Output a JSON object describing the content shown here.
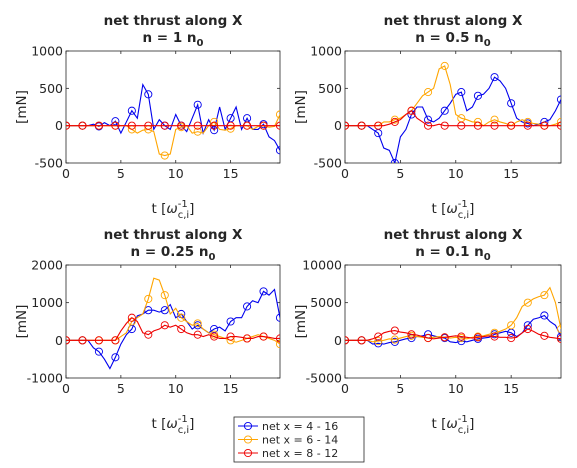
{
  "charts": [
    {
      "title1": "net thrust along X",
      "title2_main": "n = 1 n",
      "title2_sub": "0",
      "ylabel": "[mN]"
    },
    {
      "title1": "net thrust along X",
      "title2_main": "n = 0.5 n",
      "title2_sub": "0",
      "ylabel": "[mN]"
    },
    {
      "title1": "net thrust along X",
      "title2_main": "n = 0.25 n",
      "title2_sub": "0",
      "ylabel": "[mN]"
    },
    {
      "title1": "net thrust along X",
      "title2_main": "n = 0.1 n",
      "title2_sub": "0",
      "ylabel": "[mN]"
    }
  ],
  "xlabel": {
    "main": "t [",
    "omega": "ω",
    "sup": "-1",
    "sub": "c,i",
    "close": "]"
  },
  "legend": {
    "placement": "bottom-center",
    "entries": [
      "net x = 4 - 16",
      "net x = 6 - 14",
      "net x = 8 - 12"
    ]
  },
  "colors": {
    "blue": "#0000ee",
    "orange": "#ffa500",
    "red": "#ee0000"
  },
  "chart_data": [
    {
      "type": "line",
      "xlim": [
        0,
        19.5
      ],
      "ylim": [
        -500,
        1000
      ],
      "xticks": [
        0,
        5,
        10,
        15
      ],
      "yticks": [
        -500,
        0,
        500,
        1000
      ],
      "x": [
        0,
        0.5,
        1,
        1.5,
        2,
        2.5,
        3,
        3.5,
        4,
        4.5,
        5,
        5.5,
        6,
        6.5,
        7,
        7.5,
        8,
        8.5,
        9,
        9.5,
        10,
        10.5,
        11,
        11.5,
        12,
        12.5,
        13,
        13.5,
        14,
        14.5,
        15,
        15.5,
        16,
        16.5,
        17,
        17.5,
        18,
        18.5,
        19,
        19.5
      ],
      "series": [
        {
          "name": "net x = 4 - 16",
          "color": "blue",
          "values": [
            0,
            0,
            0,
            0,
            0,
            20,
            -10,
            40,
            0,
            60,
            -100,
            50,
            200,
            100,
            550,
            420,
            -50,
            80,
            0,
            -50,
            150,
            0,
            -80,
            100,
            280,
            -100,
            80,
            -60,
            250,
            -50,
            100,
            250,
            -50,
            100,
            -50,
            -50,
            20,
            -150,
            -200,
            -330
          ]
        },
        {
          "name": "net x = 6 - 14",
          "color": "orange",
          "values": [
            0,
            0,
            0,
            0,
            0,
            0,
            0,
            0,
            0,
            0,
            0,
            0,
            -50,
            -100,
            -60,
            -50,
            -80,
            -380,
            -400,
            -380,
            -50,
            -20,
            0,
            -100,
            -80,
            -100,
            0,
            50,
            -50,
            -60,
            -40,
            0,
            0,
            0,
            -50,
            -10,
            0,
            -20,
            -10,
            150
          ]
        },
        {
          "name": "net x = 8 - 12",
          "color": "red",
          "values": [
            0,
            0,
            0,
            0,
            0,
            0,
            0,
            0,
            0,
            0,
            0,
            0,
            0,
            0,
            0,
            0,
            0,
            0,
            0,
            0,
            0,
            0,
            0,
            0,
            0,
            0,
            0,
            0,
            0,
            0,
            0,
            0,
            0,
            0,
            0,
            0,
            0,
            0,
            0,
            0
          ]
        }
      ]
    },
    {
      "type": "line",
      "xlim": [
        0,
        19.5
      ],
      "ylim": [
        -500,
        1000
      ],
      "xticks": [
        0,
        5,
        10,
        15
      ],
      "yticks": [
        -500,
        0,
        500,
        1000
      ],
      "x": [
        0,
        0.5,
        1,
        1.5,
        2,
        2.5,
        3,
        3.5,
        4,
        4.5,
        5,
        5.5,
        6,
        6.5,
        7,
        7.5,
        8,
        8.5,
        9,
        9.5,
        10,
        10.5,
        11,
        11.5,
        12,
        12.5,
        13,
        13.5,
        14,
        14.5,
        15,
        15.5,
        16,
        16.5,
        17,
        17.5,
        18,
        18.5,
        19,
        19.5
      ],
      "series": [
        {
          "name": "net x = 4 - 16",
          "color": "blue",
          "values": [
            0,
            0,
            0,
            0,
            0,
            -50,
            -100,
            -300,
            -330,
            -500,
            -150,
            -50,
            150,
            250,
            250,
            80,
            50,
            100,
            200,
            300,
            420,
            450,
            200,
            250,
            400,
            420,
            500,
            650,
            600,
            500,
            300,
            100,
            50,
            30,
            0,
            20,
            50,
            80,
            200,
            350
          ]
        },
        {
          "name": "net x = 6 - 14",
          "color": "orange",
          "values": [
            0,
            0,
            0,
            0,
            0,
            0,
            0,
            50,
            50,
            80,
            100,
            150,
            200,
            300,
            400,
            450,
            500,
            760,
            800,
            550,
            150,
            100,
            80,
            50,
            50,
            0,
            50,
            80,
            50,
            30,
            0,
            50,
            80,
            50,
            30,
            20,
            0,
            0,
            20,
            50
          ]
        },
        {
          "name": "net x = 8 - 12",
          "color": "red",
          "values": [
            0,
            0,
            0,
            0,
            0,
            0,
            0,
            0,
            20,
            50,
            80,
            150,
            200,
            100,
            50,
            0,
            0,
            20,
            0,
            0,
            0,
            0,
            0,
            0,
            0,
            0,
            0,
            0,
            0,
            0,
            0,
            0,
            0,
            0,
            0,
            0,
            0,
            0,
            0,
            0
          ]
        }
      ]
    },
    {
      "type": "line",
      "xlim": [
        0,
        19.5
      ],
      "ylim": [
        -1000,
        2000
      ],
      "xticks": [
        0,
        5,
        10,
        15
      ],
      "yticks": [
        -1000,
        0,
        1000,
        2000
      ],
      "x": [
        0,
        0.5,
        1,
        1.5,
        2,
        2.5,
        3,
        3.5,
        4,
        4.5,
        5,
        5.5,
        6,
        6.5,
        7,
        7.5,
        8,
        8.5,
        9,
        9.5,
        10,
        10.5,
        11,
        11.5,
        12,
        12.5,
        13,
        13.5,
        14,
        14.5,
        15,
        15.5,
        16,
        16.5,
        17,
        17.5,
        18,
        18.5,
        19,
        19.5
      ],
      "series": [
        {
          "name": "net x = 4 - 16",
          "color": "blue",
          "values": [
            0,
            0,
            0,
            0,
            0,
            -200,
            -300,
            -500,
            -750,
            -450,
            -100,
            150,
            300,
            650,
            700,
            800,
            800,
            750,
            800,
            950,
            600,
            700,
            500,
            300,
            400,
            300,
            200,
            300,
            350,
            250,
            500,
            600,
            600,
            900,
            1050,
            1000,
            1300,
            1200,
            1350,
            600
          ]
        },
        {
          "name": "net x = 6 - 14",
          "color": "orange",
          "values": [
            0,
            0,
            0,
            0,
            0,
            0,
            0,
            0,
            0,
            0,
            100,
            200,
            500,
            600,
            700,
            1100,
            1650,
            1600,
            1200,
            700,
            850,
            600,
            500,
            400,
            450,
            300,
            200,
            150,
            100,
            50,
            0,
            -50,
            0,
            50,
            100,
            150,
            100,
            50,
            0,
            -100
          ]
        },
        {
          "name": "net x = 8 - 12",
          "color": "red",
          "values": [
            0,
            0,
            0,
            0,
            0,
            0,
            0,
            0,
            0,
            0,
            250,
            450,
            600,
            500,
            200,
            150,
            250,
            300,
            400,
            350,
            400,
            300,
            200,
            150,
            150,
            100,
            150,
            100,
            50,
            50,
            100,
            100,
            80,
            50,
            50,
            100,
            100,
            80,
            50,
            50
          ]
        }
      ]
    },
    {
      "type": "line",
      "xlim": [
        0,
        19.5
      ],
      "ylim": [
        -5000,
        10000
      ],
      "xticks": [
        0,
        5,
        10,
        15
      ],
      "yticks": [
        -5000,
        0,
        5000,
        10000
      ],
      "x": [
        0,
        0.5,
        1,
        1.5,
        2,
        2.5,
        3,
        3.5,
        4,
        4.5,
        5,
        5.5,
        6,
        6.5,
        7,
        7.5,
        8,
        8.5,
        9,
        9.5,
        10,
        10.5,
        11,
        11.5,
        12,
        12.5,
        13,
        13.5,
        14,
        14.5,
        15,
        15.5,
        16,
        16.5,
        17,
        17.5,
        18,
        18.5,
        19,
        19.5
      ],
      "series": [
        {
          "name": "net x = 4 - 16",
          "color": "blue",
          "values": [
            0,
            0,
            0,
            0,
            0,
            -500,
            -400,
            -500,
            -300,
            -200,
            0,
            200,
            300,
            500,
            600,
            800,
            600,
            400,
            300,
            -200,
            -300,
            -100,
            -200,
            0,
            200,
            300,
            400,
            800,
            1000,
            1200,
            1000,
            500,
            1000,
            2000,
            2800,
            3000,
            3300,
            2500,
            2000,
            500
          ]
        },
        {
          "name": "net x = 6 - 14",
          "color": "orange",
          "values": [
            0,
            0,
            0,
            0,
            0,
            -200,
            -100,
            0,
            200,
            100,
            300,
            500,
            600,
            500,
            400,
            300,
            400,
            500,
            400,
            300,
            400,
            300,
            200,
            400,
            500,
            600,
            800,
            1000,
            1200,
            1500,
            2000,
            3000,
            4500,
            5000,
            5500,
            5800,
            6000,
            7000,
            5000,
            1500
          ]
        },
        {
          "name": "net x = 8 - 12",
          "color": "red",
          "values": [
            0,
            0,
            0,
            0,
            0,
            200,
            500,
            1000,
            1200,
            1300,
            1100,
            1000,
            800,
            700,
            500,
            300,
            200,
            300,
            400,
            500,
            600,
            500,
            400,
            300,
            400,
            500,
            600,
            500,
            400,
            400,
            300,
            400,
            1000,
            1500,
            1200,
            800,
            600,
            400,
            300,
            200
          ]
        }
      ]
    }
  ]
}
